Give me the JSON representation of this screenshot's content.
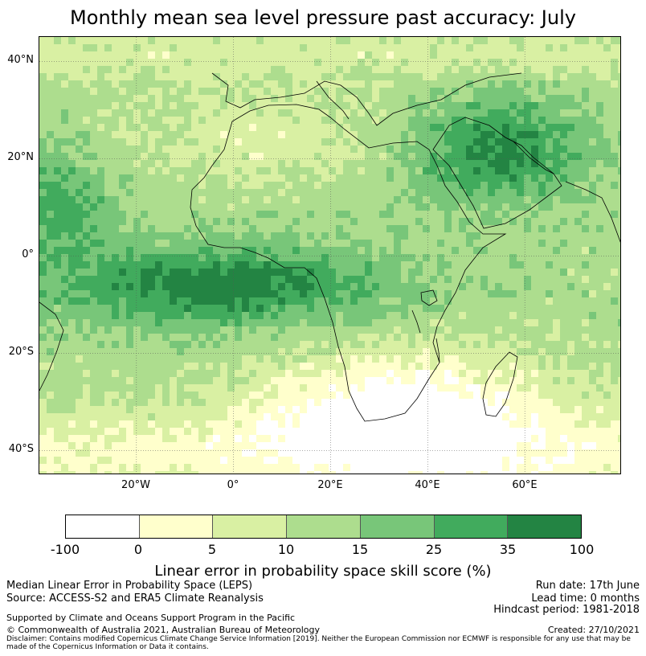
{
  "title": "Monthly mean sea level pressure past accuracy: July",
  "map": {
    "lat_ticks": [
      "40°N",
      "20°N",
      "0°",
      "20°S",
      "40°S"
    ],
    "lon_ticks": [
      "20°W",
      "0°",
      "20°E",
      "40°E",
      "60°E"
    ],
    "lon_range": [
      -40,
      80
    ],
    "lat_range": [
      -45,
      45
    ],
    "gridlines": true
  },
  "colorbar": {
    "levels": [
      "-100",
      "0",
      "5",
      "10",
      "15",
      "25",
      "35",
      "100"
    ],
    "colors": [
      "#ffffff",
      "#ffffcc",
      "#d9f0a3",
      "#addd8e",
      "#78c679",
      "#41ab5d",
      "#238443"
    ],
    "label": "Linear error in probability space skill score (%)"
  },
  "footer": {
    "left_line1": "Median Linear Error in Probability Space (LEPS)",
    "left_line2": "Source: ACCESS-S2 and ERA5 Climate Reanalysis",
    "run_date": "Run date: 17th June",
    "lead_time": "Lead time: 0 months",
    "hindcast": "Hindcast period: 1981-2018",
    "support": "Supported by Climate and Oceans Support Program in the Pacific",
    "copyright": "© Commonwealth of Australia 2021, Australian Bureau of Meteorology",
    "created": "Created: 27/10/2021",
    "disclaimer": "Disclaimer: Contains modified Copernicus Climate Change Service Information [2019]. Neither the European Commission nor ECMWF is responsible for any use that may be made of the Copernicus Information or Data it contains."
  }
}
